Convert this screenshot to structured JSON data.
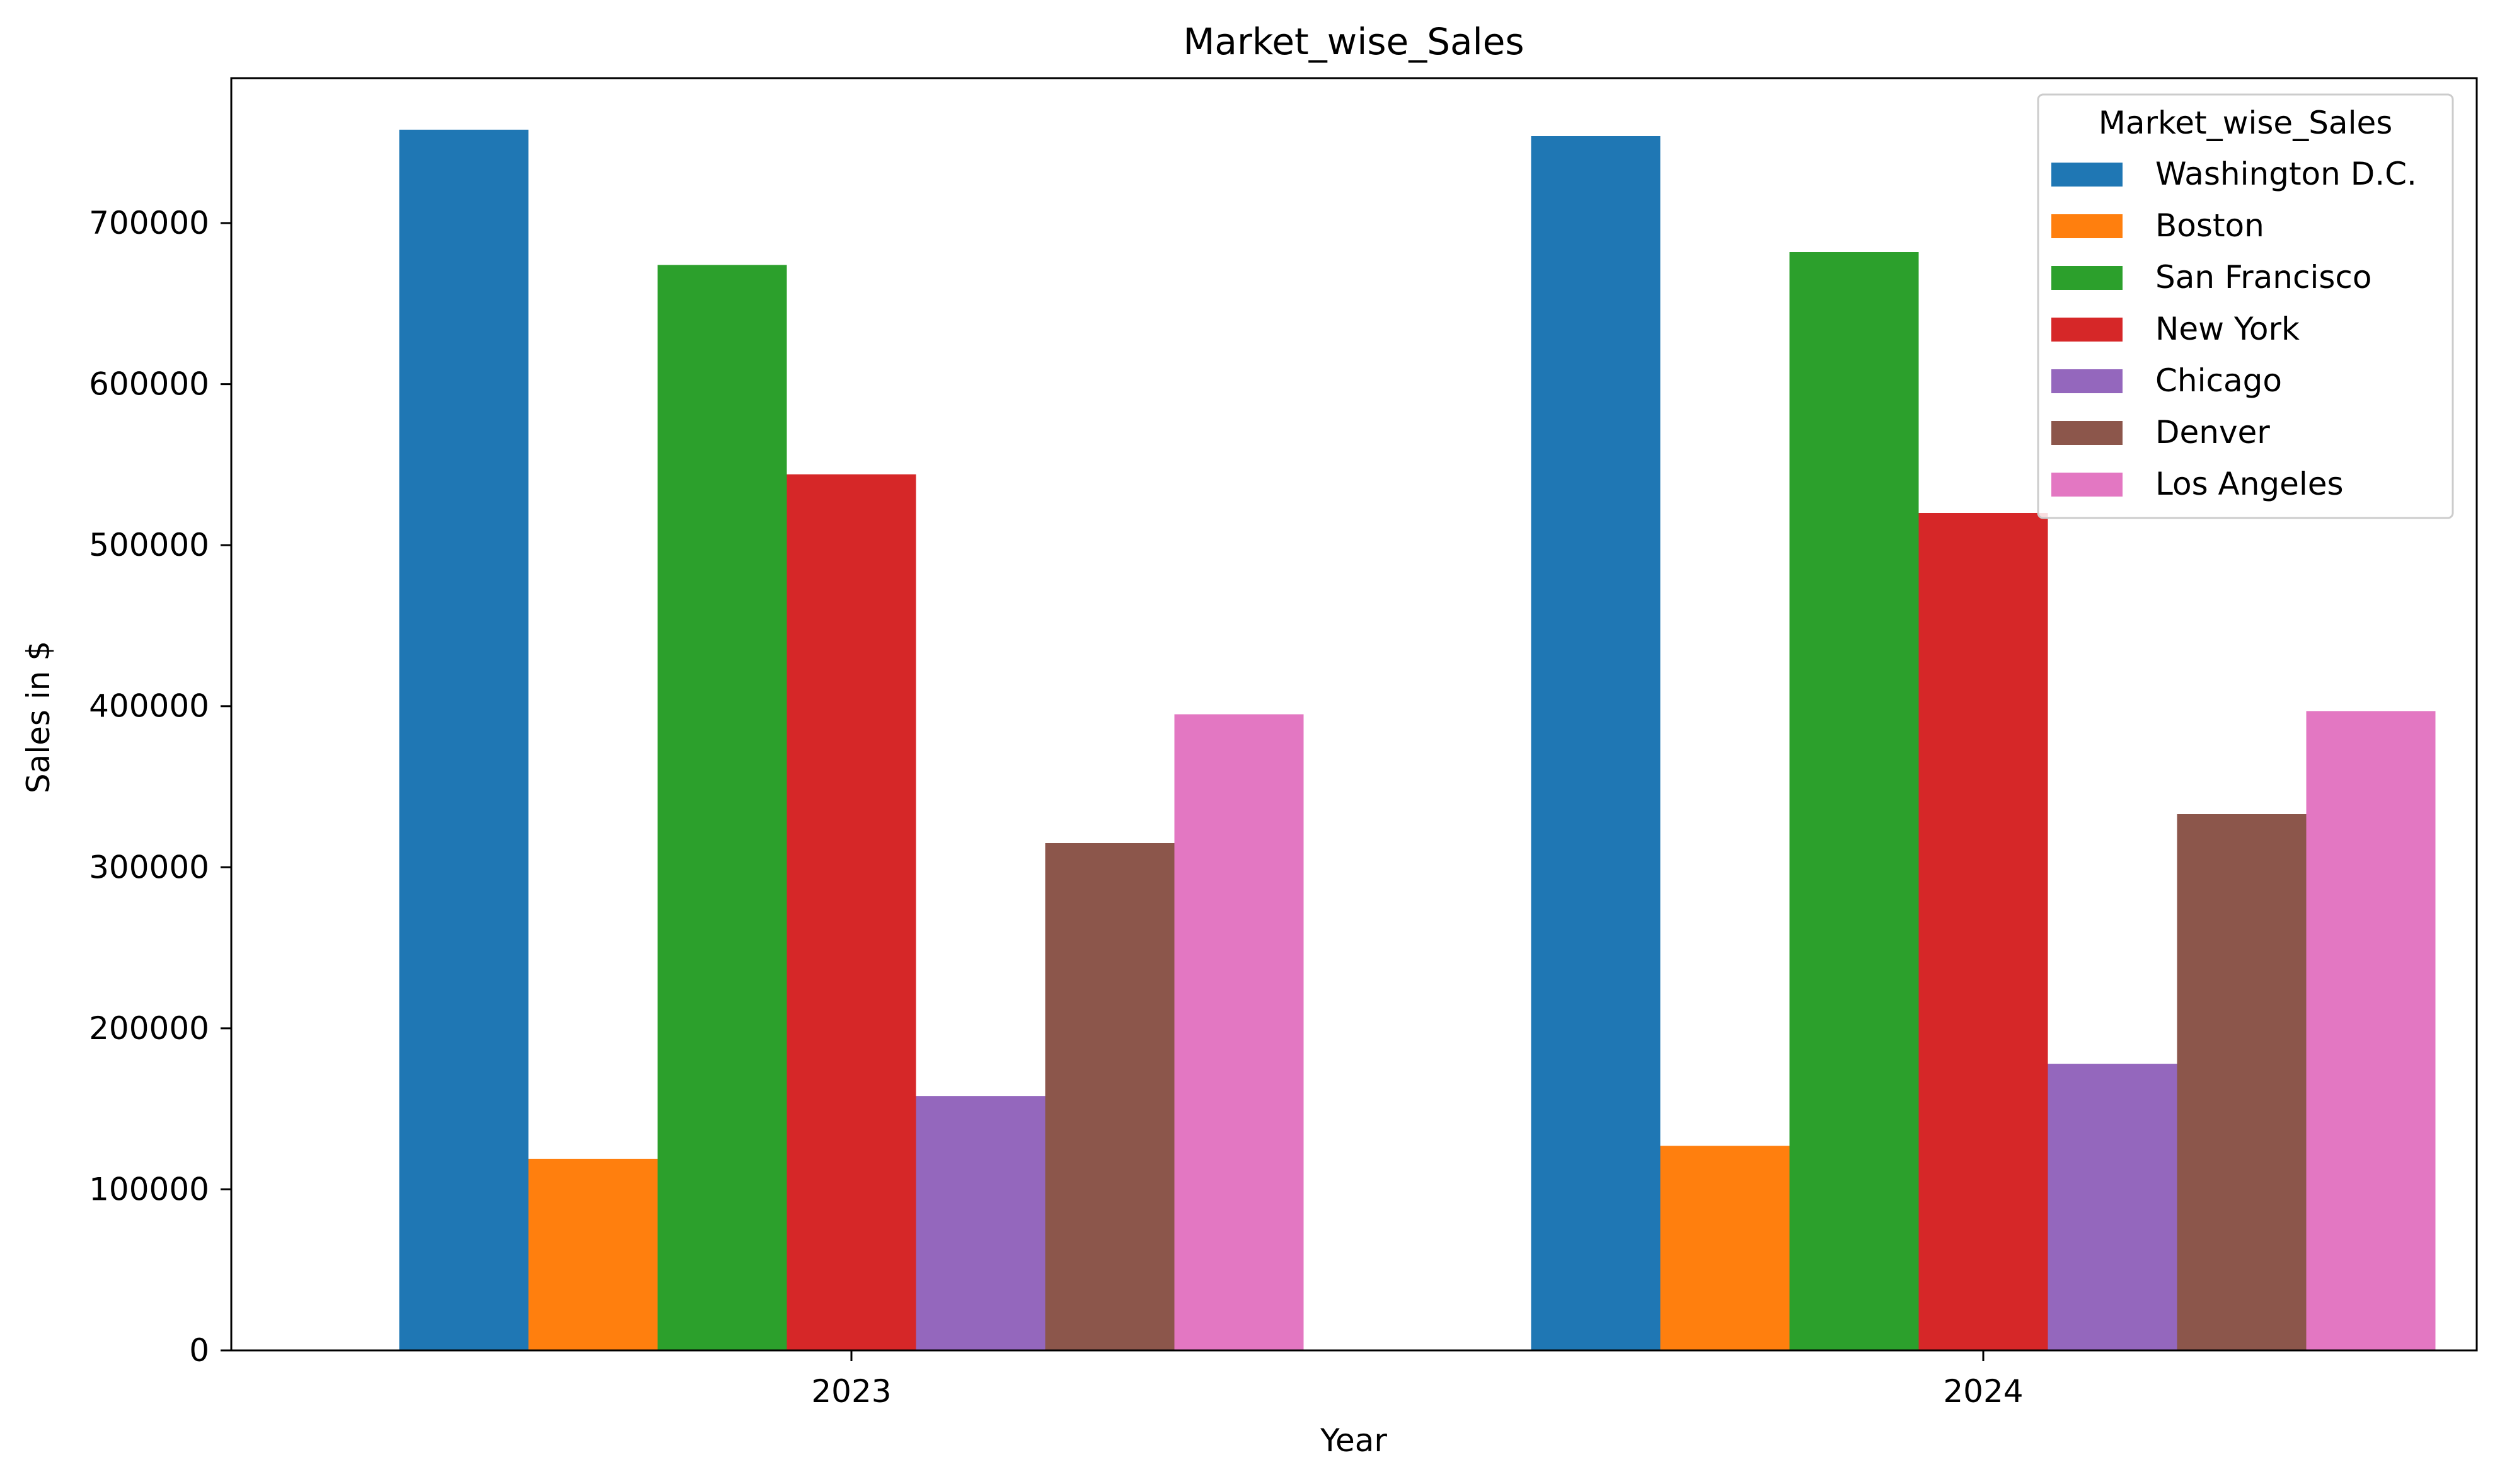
{
  "chart_data": {
    "type": "bar",
    "title": "Market_wise_Sales",
    "xlabel": "Year",
    "ylabel": "Sales in $",
    "categories": [
      "2023",
      "2024"
    ],
    "ylim": [
      0,
      790000
    ],
    "yticks": [
      0,
      100000,
      200000,
      300000,
      400000,
      500000,
      600000,
      700000
    ],
    "ytick_labels": [
      "0",
      "100000",
      "200000",
      "300000",
      "400000",
      "500000",
      "600000",
      "700000"
    ],
    "legend": {
      "title": "Market_wise_Sales",
      "position": "top-right"
    },
    "grid": false,
    "series": [
      {
        "name": "Washington D.C.",
        "color": "#1f77b4",
        "values": [
          758000,
          754000
        ]
      },
      {
        "name": "Boston",
        "color": "#ff7f0e",
        "values": [
          119000,
          127000
        ]
      },
      {
        "name": "San Francisco",
        "color": "#2ca02c",
        "values": [
          674000,
          682000
        ]
      },
      {
        "name": "New York",
        "color": "#d62728",
        "values": [
          544000,
          520000
        ]
      },
      {
        "name": "Chicago",
        "color": "#9467bd",
        "values": [
          158000,
          178000
        ]
      },
      {
        "name": "Denver",
        "color": "#8c564b",
        "values": [
          315000,
          333000
        ]
      },
      {
        "name": "Los Angeles",
        "color": "#e377c2",
        "values": [
          395000,
          397000
        ]
      }
    ]
  }
}
